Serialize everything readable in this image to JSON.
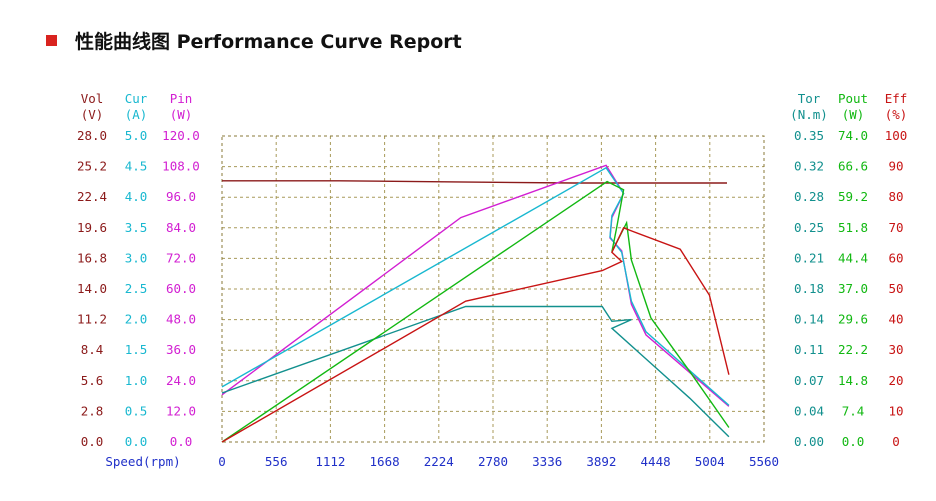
{
  "page": {
    "title": "性能曲线图 Performance Curve Report"
  },
  "chart_data": {
    "type": "line",
    "title": "性能曲线图 Performance Curve Report",
    "xlabel": "Speed(rpm)",
    "x_ticks": [
      "0",
      "556",
      "1112",
      "1668",
      "2224",
      "2780",
      "3336",
      "3892",
      "4448",
      "5004",
      "5560"
    ],
    "xlim": [
      0,
      5560
    ],
    "grid": true,
    "left_axes": [
      {
        "name": "Vol",
        "unit": "(V)",
        "color": "#8b1a1a",
        "ticks": [
          "0.0",
          "2.8",
          "5.6",
          "8.4",
          "11.2",
          "14.0",
          "16.8",
          "19.6",
          "22.4",
          "25.2",
          "28.0"
        ]
      },
      {
        "name": "Cur",
        "unit": "(A)",
        "color": "#19b8d0",
        "ticks": [
          "0.0",
          "0.5",
          "1.0",
          "1.5",
          "2.0",
          "2.5",
          "3.0",
          "3.5",
          "4.0",
          "4.5",
          "5.0"
        ]
      },
      {
        "name": "Pin",
        "unit": "(W)",
        "color": "#d21fd2",
        "ticks": [
          "0.0",
          "12.0",
          "24.0",
          "36.0",
          "48.0",
          "60.0",
          "72.0",
          "84.0",
          "96.0",
          "108.0",
          "120.0"
        ]
      }
    ],
    "right_axes": [
      {
        "name": "Tor",
        "unit": "(N.m)",
        "color": "#12908e",
        "ticks": [
          "0.00",
          "0.04",
          "0.07",
          "0.11",
          "0.14",
          "0.18",
          "0.21",
          "0.25",
          "0.28",
          "0.32",
          "0.35"
        ]
      },
      {
        "name": "Pout",
        "unit": "(W)",
        "color": "#12b812",
        "ticks": [
          "0.0",
          "7.4",
          "14.8",
          "22.2",
          "29.6",
          "37.0",
          "44.4",
          "51.8",
          "59.2",
          "66.6",
          "74.0"
        ]
      },
      {
        "name": "Eff",
        "unit": "(%)",
        "color": "#c81414",
        "ticks": [
          "0",
          "10",
          "20",
          "30",
          "40",
          "50",
          "60",
          "70",
          "80",
          "90",
          "100"
        ]
      }
    ],
    "series": [
      {
        "name": "Vol",
        "color": "#8b1a1a",
        "axis": "Vol",
        "x": [
          0,
          1200,
          2400,
          3600,
          4200,
          5180
        ],
        "y": [
          23.9,
          23.9,
          23.8,
          23.7,
          23.7,
          23.7
        ]
      },
      {
        "name": "Pin",
        "color": "#d21fd2",
        "axis": "Pin",
        "x": [
          0,
          2450,
          3940,
          4120,
          4000,
          3980,
          4100,
          4200,
          4350,
          5200
        ],
        "y": [
          18.5,
          88.0,
          108.5,
          97.5,
          88.0,
          80.0,
          75.0,
          54.0,
          42.0,
          14.0
        ]
      },
      {
        "name": "Cur",
        "color": "#19b8d0",
        "axis": "Cur",
        "x": [
          0,
          3940,
          4120,
          4000,
          3980,
          4100,
          4200,
          4350,
          5200
        ],
        "y": [
          0.9,
          4.48,
          4.06,
          3.7,
          3.35,
          3.1,
          2.3,
          1.8,
          0.6
        ]
      },
      {
        "name": "Tor",
        "color": "#12908e",
        "axis": "Tor",
        "x": [
          0,
          2500,
          3900,
          4000,
          4200,
          4000,
          4300,
          4800,
          5200
        ],
        "y": [
          0.056,
          0.155,
          0.155,
          0.138,
          0.14,
          0.13,
          0.1,
          0.05,
          0.006
        ]
      },
      {
        "name": "Pout",
        "color": "#12b812",
        "axis": "Pout",
        "x": [
          0,
          3950,
          4120,
          4050,
          4000,
          4150,
          4200,
          4400,
          4800,
          5200
        ],
        "y": [
          0.0,
          63.0,
          61.0,
          52.0,
          46.0,
          53.0,
          44.0,
          30.0,
          17.0,
          3.5
        ]
      },
      {
        "name": "Eff",
        "color": "#c81414",
        "axis": "Eff",
        "x": [
          0,
          2500,
          3900,
          4100,
          4000,
          4120,
          4200,
          4700,
          5000,
          5200
        ],
        "y": [
          0,
          46,
          56,
          59,
          62,
          70,
          69,
          63,
          48,
          22
        ]
      }
    ]
  }
}
